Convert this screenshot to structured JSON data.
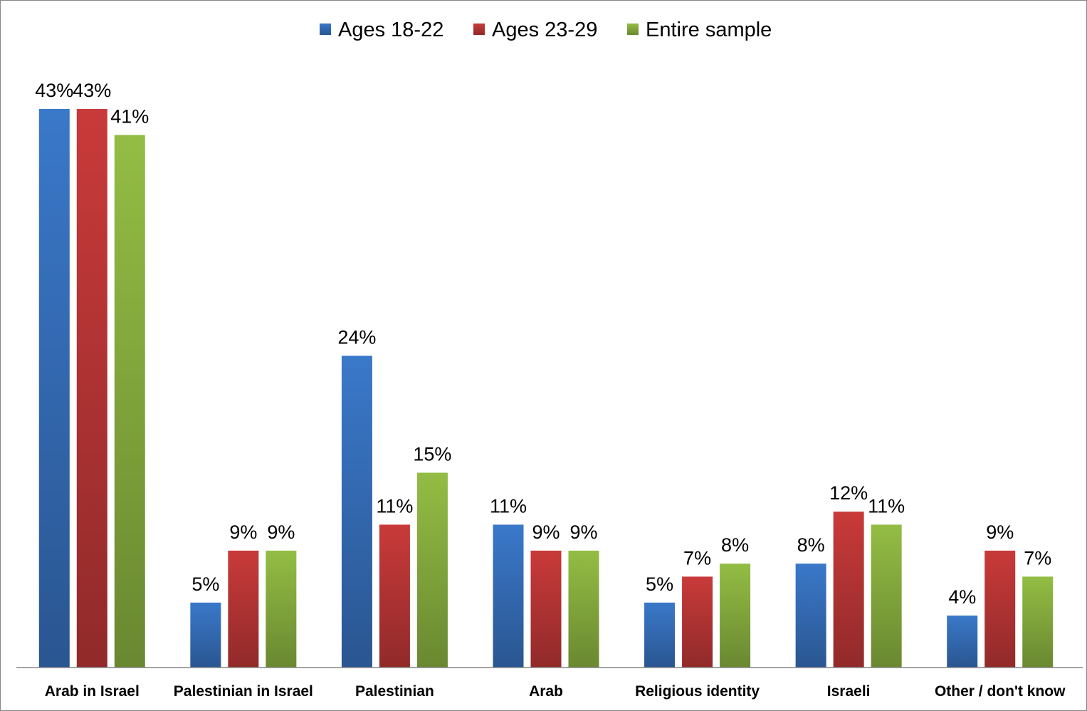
{
  "chart_data": {
    "type": "bar",
    "categories": [
      "Arab in Israel",
      "Palestinian in Israel",
      "Palestinian",
      "Arab",
      "Religious identity",
      "Israeli",
      "Other / don't know"
    ],
    "series": [
      {
        "name": "Ages 18-22",
        "color": "#3a78c9",
        "values": [
          43,
          5,
          24,
          11,
          5,
          8,
          4
        ],
        "labels": [
          "43%",
          "5%",
          "24%",
          "11%",
          "5%",
          "8%",
          "4%"
        ]
      },
      {
        "name": "Ages 23-29",
        "color": "#c93a3a",
        "values": [
          43,
          9,
          11,
          9,
          7,
          12,
          9
        ],
        "labels": [
          "43%",
          "9%",
          "11%",
          "9%",
          "7%",
          "12%",
          "9%"
        ]
      },
      {
        "name": "Entire sample",
        "color": "#93bd44",
        "values": [
          41,
          9,
          15,
          9,
          8,
          11,
          7
        ],
        "labels": [
          "41%",
          "9%",
          "15%",
          "9%",
          "8%",
          "11%",
          "7%"
        ]
      }
    ],
    "ylim": [
      0,
      43
    ],
    "grid": false,
    "legend": "top-center",
    "title": "",
    "xlabel": "",
    "ylabel": ""
  }
}
